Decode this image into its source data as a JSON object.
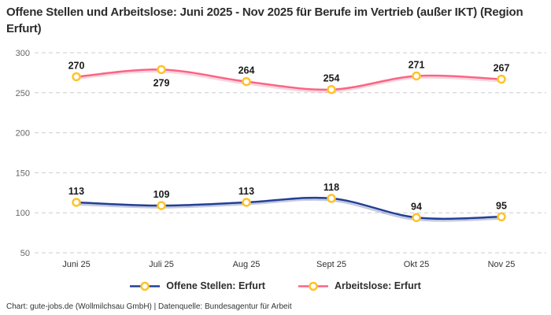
{
  "title": "Offene Stellen und Arbeitslose: Juni 2025 - Nov 2025 für Berufe im Vertrieb (außer IKT) (Region Erfurt)",
  "footer": "Chart: gute-jobs.de (Wollmilchsau GmbH) | Datenquelle: Bundesagentur für Arbeit",
  "chart_data": {
    "type": "line",
    "categories": [
      "Juni 25",
      "Juli 25",
      "Aug 25",
      "Sept 25",
      "Okt 25",
      "Nov 25"
    ],
    "series": [
      {
        "name": "Offene Stellen: Erfurt",
        "color": "#243f94",
        "values": [
          113,
          109,
          113,
          118,
          94,
          95
        ],
        "label_positions": [
          "above",
          "above",
          "above",
          "above",
          "above",
          "above"
        ]
      },
      {
        "name": "Arbeitslose: Erfurt",
        "color": "#fa6584",
        "values": [
          270,
          279,
          264,
          254,
          271,
          267
        ],
        "label_positions": [
          "above",
          "below",
          "above",
          "above",
          "above",
          "above"
        ]
      }
    ],
    "marker": {
      "shape": "circle",
      "stroke": "#ffc329",
      "fill": "#ffffff"
    },
    "yticks": [
      50,
      100,
      150,
      200,
      250,
      300
    ],
    "ylim": [
      50,
      300
    ],
    "grid": "horizontal-dashed",
    "grid_color": "#cccccc",
    "legend_position": "bottom"
  }
}
